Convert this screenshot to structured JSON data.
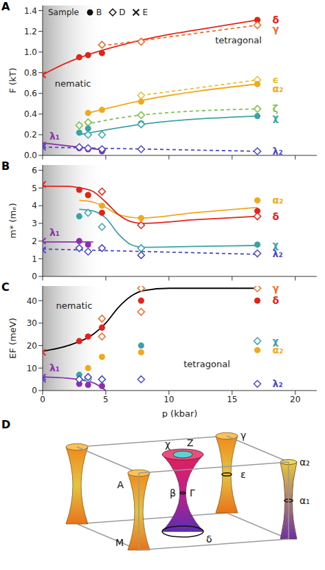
{
  "chart_data": [
    {
      "panel": "A",
      "type": "scatter",
      "y_label": "F (kT)",
      "tick_labels": "y",
      "xlim": [
        0,
        21.7
      ],
      "xticks": [
        0,
        5,
        10,
        15,
        20
      ],
      "ylim": [
        0,
        1.45
      ],
      "yticks": [
        {
          "value": 0,
          "label": "0.0"
        },
        {
          "value": 0.2,
          "label": "0.2"
        },
        {
          "value": 0.4,
          "label": "0.4"
        },
        {
          "value": 0.6,
          "label": "0.6"
        },
        {
          "value": 0.8,
          "label": "0.8"
        },
        {
          "value": 1,
          "label": "1.0"
        },
        {
          "value": 1.2,
          "label": "1.2"
        },
        {
          "value": 1.4,
          "label": "1.4"
        }
      ],
      "shaded_range": [
        0,
        5
      ],
      "annotations": [
        {
          "text": "nematic",
          "x": 2.4,
          "y": 0.7
        },
        {
          "text": "tetragonal",
          "x": 15.5,
          "y": 1.12
        }
      ],
      "sample_legend": {
        "title": "Sample",
        "entries": [
          {
            "label": "B",
            "marker": "circle"
          },
          {
            "label": "D",
            "marker": "diamond"
          },
          {
            "label": "E",
            "marker": "cross"
          }
        ]
      },
      "series": [
        {
          "name": "δ",
          "color": "#e2231a",
          "x": [
            0,
            2.9,
            3.6,
            4.7,
            17
          ],
          "values": [
            0.78,
            0.95,
            0.97,
            0.99,
            1.31
          ],
          "samples": [
            "E",
            "B",
            "B",
            "B",
            "B"
          ]
        },
        {
          "name": "γ",
          "color": "#f26b21",
          "x": [
            4.7,
            7.8,
            17
          ],
          "values": [
            1.07,
            1.1,
            1.26
          ],
          "samples": [
            "D",
            "D",
            "D"
          ]
        },
        {
          "name": "ϵ",
          "color": "#e5c22a",
          "x": [
            7.8,
            17
          ],
          "values": [
            0.58,
            0.73
          ],
          "samples": [
            "D",
            "D"
          ]
        },
        {
          "name": "α₂",
          "color": "#f0a81e",
          "x": [
            3.6,
            4.7,
            7.8,
            17
          ],
          "values": [
            0.41,
            0.44,
            0.52,
            0.69
          ],
          "samples": [
            "B",
            "B",
            "B",
            "B"
          ]
        },
        {
          "name": "ζ",
          "color": "#7dc24e",
          "x": [
            2.9,
            3.6,
            7.8,
            17
          ],
          "values": [
            0.29,
            0.32,
            0.39,
            0.45
          ],
          "samples": [
            "D",
            "D",
            "D",
            "D"
          ]
        },
        {
          "name": "χ",
          "color": "#3ba3a6",
          "x": [
            2.9,
            3.6,
            3.6,
            4.7,
            7.8,
            7.8,
            17
          ],
          "values": [
            0.22,
            0.26,
            0.2,
            0.2,
            0.31,
            0.3,
            0.38
          ],
          "samples": [
            "B",
            "B",
            "D",
            "D",
            "B",
            "D",
            "B"
          ]
        },
        {
          "name": "λ₁",
          "color": "#8b2fae",
          "x": [
            0,
            2.9,
            3.6,
            4.7
          ],
          "values": [
            0.1,
            0.07,
            0.06,
            0.04
          ],
          "samples": [
            "E",
            "B",
            "B",
            "B"
          ]
        },
        {
          "name": "λ₂",
          "color": "#4a47c9",
          "x": [
            0,
            2.9,
            3.6,
            4.7,
            7.8,
            17
          ],
          "values": [
            0.08,
            0.08,
            0.07,
            0.06,
            0.06,
            0.04
          ],
          "samples": [
            "E",
            "D",
            "D",
            "D",
            "D",
            "D"
          ]
        }
      ],
      "fits": [
        {
          "color": "#e2231a",
          "line_style": "solid",
          "x": [
            0,
            2,
            4,
            6,
            8,
            10,
            12,
            14,
            17
          ],
          "values": [
            0.78,
            0.9,
            0.99,
            1.06,
            1.12,
            1.17,
            1.21,
            1.25,
            1.31
          ]
        },
        {
          "color": "#f26b21",
          "line_style": "dashed",
          "x": [
            4.7,
            17
          ],
          "values": [
            1.06,
            1.26
          ]
        },
        {
          "color": "#e5c22a",
          "line_style": "dashed",
          "x": [
            7.8,
            17
          ],
          "values": [
            0.58,
            0.73
          ]
        },
        {
          "color": "#f0a81e",
          "line_style": "solid",
          "x": [
            3.6,
            7.8,
            17
          ],
          "values": [
            0.41,
            0.53,
            0.69
          ]
        },
        {
          "color": "#7dc24e",
          "line_style": "dashed",
          "x": [
            2.9,
            7.8,
            17
          ],
          "values": [
            0.29,
            0.39,
            0.45
          ]
        },
        {
          "color": "#3ba3a6",
          "line_style": "solid",
          "x": [
            2.9,
            7.8,
            17
          ],
          "values": [
            0.2,
            0.3,
            0.38
          ]
        },
        {
          "color": "#8b2fae",
          "line_style": "solid",
          "x": [
            0,
            5
          ],
          "values": [
            0.12,
            0.05
          ]
        },
        {
          "color": "#4a47c9",
          "line_style": "dashed",
          "x": [
            0,
            17
          ],
          "values": [
            0.08,
            0.04
          ]
        }
      ]
    },
    {
      "panel": "B",
      "type": "scatter",
      "y_label": "m* (mₑ)",
      "tick_labels": "y",
      "xlim": [
        0,
        21.7
      ],
      "xticks": [
        0,
        5,
        10,
        15,
        20
      ],
      "ylim": [
        0,
        6.3
      ],
      "yticks": [
        0,
        1,
        2,
        3,
        4,
        5,
        6
      ],
      "shaded_range": [
        0,
        5
      ],
      "series": [
        {
          "name": "α₂",
          "color": "#f0a81e",
          "x": [
            3.6,
            4.7,
            7.8,
            17
          ],
          "values": [
            4.6,
            4.0,
            3.3,
            4.3
          ],
          "samples": [
            "B",
            "B",
            "B",
            "B"
          ]
        },
        {
          "name": "δ",
          "color": "#e2231a",
          "x": [
            0,
            2.9,
            3.6,
            4.7,
            4.7,
            7.8,
            17,
            17
          ],
          "values": [
            5.2,
            4.9,
            4.6,
            4.8,
            3.6,
            2.9,
            3.7,
            3.4
          ],
          "samples": [
            "E",
            "B",
            "B",
            "D",
            "B",
            "D",
            "B",
            "D"
          ]
        },
        {
          "name": "χ",
          "color": "#3ba3a6",
          "x": [
            2.9,
            3.6,
            4.7,
            7.8,
            17
          ],
          "values": [
            3.4,
            3.6,
            2.8,
            1.6,
            1.8
          ],
          "samples": [
            "B",
            "D",
            "D",
            "D",
            "B"
          ]
        },
        {
          "name": "λ₁",
          "color": "#8b2fae",
          "x": [
            0,
            2.9,
            3.6
          ],
          "values": [
            2.0,
            2.0,
            1.8
          ],
          "samples": [
            "E",
            "B",
            "B"
          ]
        },
        {
          "name": "λ₂",
          "color": "#4a47c9",
          "x": [
            0,
            2.9,
            3.6,
            4.7,
            7.8,
            17
          ],
          "values": [
            1.5,
            1.6,
            1.4,
            1.6,
            1.2,
            1.3
          ],
          "samples": [
            "E",
            "D",
            "D",
            "D",
            "D",
            "D"
          ]
        }
      ],
      "fits": [
        {
          "color": "#f0a81e",
          "line_style": "solid",
          "x": [
            2.9,
            4,
            5,
            6,
            7.8,
            12,
            17
          ],
          "values": [
            4.3,
            4.2,
            3.9,
            3.5,
            3.3,
            3.6,
            3.9
          ]
        },
        {
          "color": "#e2231a",
          "line_style": "solid",
          "x": [
            0,
            2,
            3,
            4,
            5,
            6,
            7,
            8,
            12,
            17
          ],
          "values": [
            5.1,
            5.1,
            5.0,
            4.8,
            4.2,
            3.5,
            3.1,
            3.0,
            3.2,
            3.4
          ]
        },
        {
          "color": "#3ba3a6",
          "line_style": "solid",
          "x": [
            2.9,
            4,
            5,
            6,
            7,
            8,
            12,
            17
          ],
          "values": [
            3.8,
            3.7,
            3.3,
            2.4,
            1.8,
            1.65,
            1.7,
            1.75
          ]
        },
        {
          "color": "#8b2fae",
          "line_style": "solid",
          "x": [
            0,
            4
          ],
          "values": [
            1.95,
            1.95
          ]
        },
        {
          "color": "#4a47c9",
          "line_style": "dashed",
          "x": [
            0,
            17
          ],
          "values": [
            1.55,
            1.25
          ]
        }
      ]
    },
    {
      "panel": "C",
      "type": "scatter",
      "y_label": "EF (meV)",
      "x_label": "p (kbar)",
      "xlim": [
        0,
        21.7
      ],
      "xticks": [
        0,
        5,
        10,
        15,
        20
      ],
      "ylim": [
        0,
        46.5
      ],
      "yticks": [
        0,
        10,
        20,
        30,
        40
      ],
      "shaded_range": [
        0,
        5
      ],
      "annotations": [
        {
          "text": "nematic",
          "x": 2.5,
          "y": 38
        },
        {
          "text": "tetragonal",
          "x": 13,
          "y": 12
        }
      ],
      "series": [
        {
          "name": "γ",
          "color": "#f26b21",
          "x": [
            4.7,
            4.7,
            7.8,
            7.8,
            17
          ],
          "values": [
            32,
            24,
            45.5,
            35,
            45.5
          ],
          "samples": [
            "D",
            "D",
            "D",
            "D",
            "D"
          ]
        },
        {
          "name": "δ",
          "color": "#e2231a",
          "x": [
            0,
            2.9,
            3.6,
            4.7,
            7.8,
            17
          ],
          "values": [
            17,
            22,
            24,
            28,
            40,
            40
          ],
          "samples": [
            "E",
            "B",
            "B",
            "B",
            "B",
            "B"
          ]
        },
        {
          "name": "χ",
          "color": "#3ba3a6",
          "x": [
            2.9,
            3.6,
            4.7,
            7.8,
            17
          ],
          "values": [
            7,
            5,
            5,
            20,
            22
          ],
          "samples": [
            "B",
            "D",
            "D",
            "B",
            "D"
          ]
        },
        {
          "name": "α₂",
          "color": "#f0a81e",
          "x": [
            3.6,
            4.7,
            7.8,
            17
          ],
          "values": [
            10,
            15,
            17,
            18
          ],
          "samples": [
            "B",
            "B",
            "B",
            "B"
          ]
        },
        {
          "name": "λ₁",
          "color": "#8b2fae",
          "x": [
            0,
            2.9,
            3.6,
            4.7
          ],
          "values": [
            6,
            3,
            2.5,
            2
          ],
          "samples": [
            "E",
            "B",
            "B",
            "B"
          ]
        },
        {
          "name": "λ₂",
          "color": "#4a47c9",
          "x": [
            0,
            2.9,
            3.6,
            4.7,
            7.8,
            17
          ],
          "values": [
            5,
            5,
            6,
            5,
            5,
            3
          ],
          "samples": [
            "E",
            "D",
            "D",
            "D",
            "D",
            "D"
          ]
        }
      ],
      "fits": [
        {
          "color": "#000000",
          "line_style": "solid",
          "x": [
            0,
            2,
            4,
            5,
            6,
            7,
            8,
            10,
            17
          ],
          "values": [
            17.5,
            20,
            25,
            30,
            37,
            42,
            44.5,
            45.5,
            45.5
          ]
        },
        {
          "color": "#8b2fae",
          "line_style": "solid",
          "x": [
            0,
            2,
            4,
            5
          ],
          "values": [
            6,
            5.5,
            3.5,
            0
          ]
        }
      ]
    }
  ],
  "diagram": {
    "panel": "D",
    "labels": {
      "corner_top": "A",
      "corner_bottom": "M",
      "center_top": "Z",
      "center_pocket": "χ",
      "center_waist": "β",
      "center": "Γ",
      "center_bottom": "δ",
      "back_pocket_top": "γ",
      "back_pocket_mid": "ε",
      "front_pocket_top": "α₂",
      "front_pocket_mid": "α₁"
    }
  }
}
